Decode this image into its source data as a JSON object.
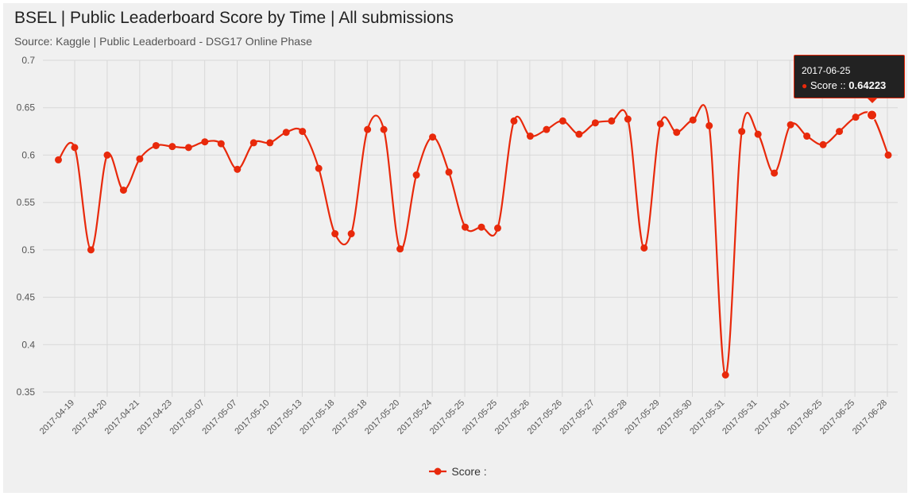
{
  "title": "BSEL | Public Leaderboard Score by Time | All submissions",
  "subtitle": "Source: Kaggle | Public Leaderboard - DSG17 Online Phase",
  "colors": {
    "series": "#e8290b",
    "grid": "#d8d8d8",
    "background": "#f0f0f0"
  },
  "chart_data": {
    "type": "line",
    "title": "BSEL | Public Leaderboard Score by Time | All submissions",
    "subtitle": "Source: Kaggle | Public Leaderboard - DSG17 Online Phase",
    "xlabel": "",
    "ylabel": "",
    "ylim": [
      0.35,
      0.7
    ],
    "yticks": [
      0.35,
      0.4,
      0.45,
      0.5,
      0.55,
      0.6,
      0.65,
      0.7
    ],
    "ytick_labels": [
      "0.35",
      "0.4",
      "0.45",
      "0.5",
      "0.55",
      "0.6",
      "0.65",
      "0.7"
    ],
    "xtick_labels": [
      "2017-04-19",
      "2017-04-20",
      "2017-04-21",
      "2017-04-23",
      "2017-05-07",
      "2017-05-07",
      "2017-05-10",
      "2017-05-13",
      "2017-05-18",
      "2017-05-18",
      "2017-05-20",
      "2017-05-24",
      "2017-05-25",
      "2017-05-25",
      "2017-05-26",
      "2017-05-26",
      "2017-05-27",
      "2017-05-28",
      "2017-05-29",
      "2017-05-30",
      "2017-05-31",
      "2017-05-31",
      "2017-06-01",
      "2017-06-25",
      "2017-06-25",
      "2017-06-28"
    ],
    "grid": true,
    "legend_position": "bottom-center",
    "series": [
      {
        "name": "Score :",
        "values": [
          0.595,
          0.608,
          0.5,
          0.6,
          0.563,
          0.596,
          0.61,
          0.609,
          0.608,
          0.614,
          0.612,
          0.585,
          0.613,
          0.613,
          0.624,
          0.625,
          0.586,
          0.517,
          0.517,
          0.627,
          0.627,
          0.501,
          0.579,
          0.619,
          0.582,
          0.524,
          0.524,
          0.523,
          0.636,
          0.62,
          0.627,
          0.636,
          0.622,
          0.634,
          0.636,
          0.638,
          0.502,
          0.633,
          0.624,
          0.637,
          0.631,
          0.368,
          0.625,
          0.622,
          0.581,
          0.632,
          0.62,
          0.611,
          0.625,
          0.64,
          0.64223,
          0.6
        ]
      }
    ],
    "highlighted": {
      "label": "2017-06-25",
      "series_label": "Score :: ",
      "value": "0.64223",
      "index": 50
    }
  },
  "legend": {
    "label": "Score :"
  }
}
